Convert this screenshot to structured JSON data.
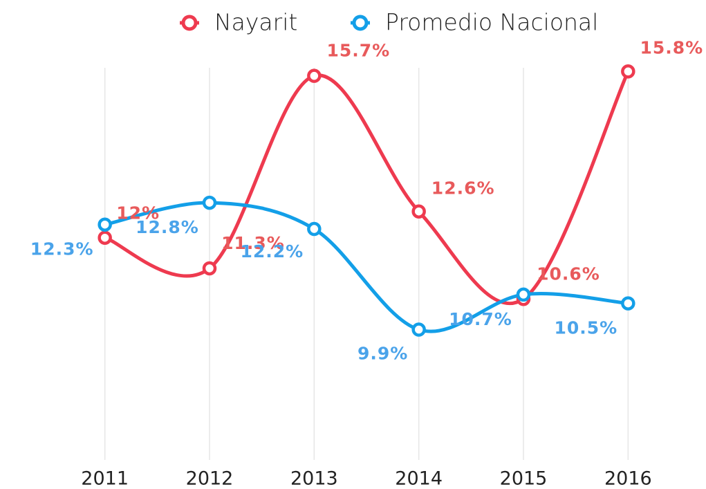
{
  "chart_data": {
    "type": "line",
    "categories": [
      "2011",
      "2012",
      "2013",
      "2014",
      "2015",
      "2016"
    ],
    "series": [
      {
        "name": "Nayarit",
        "color": "#ee3a4f",
        "label_color": "#e85a5b",
        "values": [
          12,
          11.3,
          15.7,
          12.6,
          10.6,
          15.8
        ],
        "value_labels": [
          "12%",
          "11.3%",
          "15.7%",
          "12.6%",
          "10.6%",
          "15.8%"
        ]
      },
      {
        "name": "Promedio Nacional",
        "color": "#139fe8",
        "label_color": "#4aa3ea",
        "values": [
          12.3,
          12.8,
          12.2,
          9.9,
          10.7,
          10.5
        ],
        "value_labels": [
          "12.3%",
          "12.8%",
          "12.2%",
          "9.9%",
          "10.7%",
          "10.5%"
        ]
      }
    ],
    "ylim": [
      7,
      16.2
    ],
    "grid": true,
    "legend": "top"
  }
}
